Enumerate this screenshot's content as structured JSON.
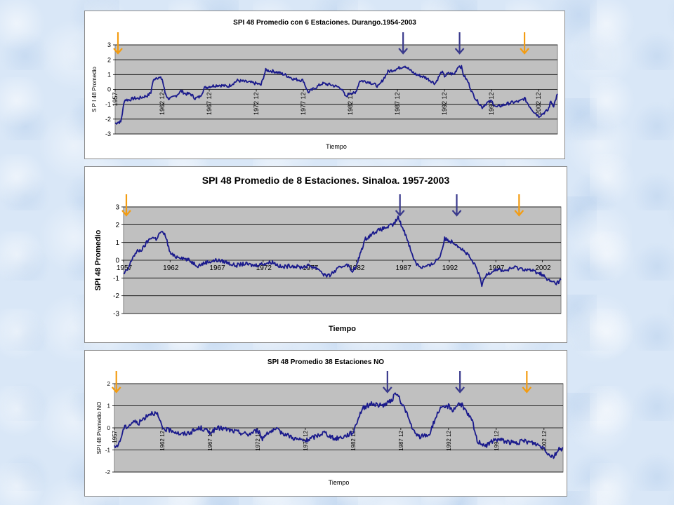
{
  "chart_data": [
    {
      "type": "line",
      "title": "SPI 48  Promedio con 6 Estaciones. Durango.1954-2003",
      "xlabel": "Tiempo",
      "ylabel": "S P I 48  Promedio",
      "ylim": [
        -3,
        3
      ],
      "yticks": [
        "3",
        "2",
        "1",
        "0",
        "-1",
        "-2",
        "-3"
      ],
      "xlim": [
        1957,
        2004
      ],
      "xtick_labels": [
        "1957",
        "1962 12",
        "1967 12",
        "1972 12",
        "1977 12",
        "1982 12",
        "1987 12",
        "1992 12",
        "1997 12",
        "2002 12"
      ],
      "grid": true,
      "series": [
        {
          "color": "#1a1a8c",
          "x": [
            1957.0,
            1957.3,
            1957.6,
            1958.0,
            1958.5,
            1959.0,
            1959.5,
            1960.0,
            1960.5,
            1960.8,
            1961.0,
            1961.3,
            1961.6,
            1962.0,
            1962.3,
            1962.6,
            1963.0,
            1963.5,
            1964.0,
            1964.5,
            1965.0,
            1965.5,
            1966.0,
            1966.5,
            1967.0,
            1968.0,
            1969.0,
            1970.0,
            1971.0,
            1972.0,
            1972.5,
            1973.0,
            1974.0,
            1975.0,
            1976.0,
            1977.0,
            1977.5,
            1978.0,
            1979.0,
            1980.0,
            1981.0,
            1981.5,
            1982.0,
            1982.5,
            1983.0,
            1984.0,
            1985.0,
            1986.0,
            1987.0,
            1987.8,
            1988.5,
            1989.0,
            1990.0,
            1991.0,
            1991.7,
            1992.0,
            1992.5,
            1993.0,
            1993.5,
            1993.8,
            1994.0,
            1994.5,
            1995.0,
            1995.5,
            1996.0,
            1996.5,
            1997.0,
            1997.5,
            1998.0,
            1999.0,
            2000.0,
            2000.5,
            2001.0,
            2001.5,
            2002.0,
            2002.5,
            2003.0,
            2003.3,
            2003.6,
            2004.0
          ],
          "y": [
            -2.3,
            -2.2,
            -2.2,
            -0.7,
            -0.7,
            -0.6,
            -0.6,
            -0.5,
            -0.4,
            -0.2,
            0.5,
            0.8,
            0.8,
            0.7,
            -0.2,
            -0.6,
            -0.6,
            -0.4,
            -0.1,
            -0.3,
            -0.3,
            -0.6,
            -0.5,
            0.1,
            0.2,
            0.3,
            0.2,
            0.6,
            0.5,
            0.4,
            0.3,
            1.3,
            1.2,
            1.0,
            0.7,
            0.6,
            -0.2,
            0.0,
            0.4,
            0.3,
            0.1,
            -0.5,
            -0.2,
            -0.3,
            0.6,
            0.5,
            0.2,
            1.2,
            1.4,
            1.6,
            1.2,
            1.0,
            0.8,
            0.4,
            1.2,
            0.9,
            1.1,
            1.0,
            1.6,
            1.5,
            1.0,
            0.5,
            -0.3,
            -0.8,
            -1.2,
            -0.9,
            -0.8,
            -1.2,
            -1.1,
            -0.9,
            -0.8,
            -0.6,
            -1.1,
            -1.5,
            -1.8,
            -1.6,
            -1.4,
            -0.8,
            -1.1,
            -0.3
          ]
        }
      ],
      "arrows": [
        {
          "x": 1957.3,
          "color": "#f39c12"
        },
        {
          "x": 1987.6,
          "color": "#3a3a8c"
        },
        {
          "x": 1993.6,
          "color": "#3a3a8c"
        },
        {
          "x": 2000.5,
          "color": "#f39c12"
        }
      ]
    },
    {
      "type": "line",
      "title": "SPI 48  Promedio de 8 Estaciones. Sinaloa. 1957-2003",
      "xlabel": "Tiempo",
      "ylabel": "SPI 48 Promedio",
      "ylim": [
        -3,
        3
      ],
      "yticks": [
        "3",
        "2",
        "1",
        "0",
        "-1",
        "-2",
        "-3"
      ],
      "xlim": [
        1957,
        2004
      ],
      "xtick_labels": [
        "1957",
        "1962",
        "1967",
        "1972",
        "1977",
        "1982",
        "1987",
        "1992",
        "1997",
        "2002"
      ],
      "grid": true,
      "series": [
        {
          "color": "#1a1a8c",
          "x": [
            1957.0,
            1957.5,
            1958.0,
            1958.5,
            1959.0,
            1959.5,
            1960.0,
            1960.5,
            1961.0,
            1961.5,
            1962.0,
            1962.5,
            1963.0,
            1964.0,
            1965.0,
            1966.0,
            1967.0,
            1968.0,
            1969.0,
            1970.0,
            1971.0,
            1972.0,
            1973.0,
            1974.0,
            1975.0,
            1976.0,
            1977.0,
            1978.0,
            1978.5,
            1979.0,
            1980.0,
            1981.0,
            1981.5,
            1982.0,
            1982.5,
            1983.0,
            1984.0,
            1985.0,
            1986.0,
            1986.5,
            1987.0,
            1987.5,
            1988.0,
            1988.5,
            1989.0,
            1990.0,
            1991.0,
            1991.5,
            1992.0,
            1992.5,
            1993.0,
            1994.0,
            1995.0,
            1995.5,
            1996.0,
            1997.0,
            1998.0,
            1999.0,
            2000.0,
            2001.0,
            2002.0,
            2002.5,
            2003.0,
            2003.5,
            2004.0
          ],
          "y": [
            -0.8,
            -0.5,
            0.2,
            0.5,
            0.6,
            1.0,
            1.3,
            1.2,
            1.6,
            1.4,
            0.4,
            0.2,
            0.2,
            0.0,
            -0.3,
            -0.1,
            0.0,
            -0.1,
            -0.3,
            -0.2,
            -0.3,
            -0.2,
            -0.1,
            -0.4,
            -0.3,
            -0.4,
            -0.3,
            -0.5,
            -0.8,
            -0.9,
            -0.5,
            -0.2,
            -0.6,
            -0.4,
            0.5,
            1.2,
            1.6,
            1.8,
            2.0,
            2.4,
            1.8,
            1.2,
            0.3,
            -0.2,
            -0.4,
            -0.3,
            0.2,
            1.2,
            1.1,
            1.0,
            0.8,
            0.3,
            -0.5,
            -1.4,
            -0.8,
            -0.5,
            -0.6,
            -0.4,
            -0.5,
            -0.6,
            -0.8,
            -1.1,
            -1.2,
            -1.3,
            -1.1
          ]
        }
      ],
      "arrows": [
        {
          "x": 1957.3,
          "color": "#f39c12"
        },
        {
          "x": 1986.7,
          "color": "#3a3a8c"
        },
        {
          "x": 1992.8,
          "color": "#3a3a8c"
        },
        {
          "x": 1999.5,
          "color": "#f39c12"
        }
      ]
    },
    {
      "type": "line",
      "title": "SPI 48 Promedio 38 Estaciones NO",
      "xlabel": "Tiempo",
      "ylabel": "SPI 48 Promedio NO",
      "ylim": [
        -2,
        2
      ],
      "yticks": [
        "2",
        "1",
        "0",
        "-1",
        "-2"
      ],
      "xlim": [
        1957,
        2004
      ],
      "xtick_labels": [
        "1957",
        "1962 12",
        "1967 12",
        "1972 12",
        "1977 12",
        "1982 12",
        "1987 12",
        "1992 12",
        "1997 12",
        "2002 12"
      ],
      "grid": true,
      "series": [
        {
          "color": "#1a1a8c",
          "x": [
            1957.0,
            1957.5,
            1958.0,
            1958.5,
            1959.0,
            1959.5,
            1960.0,
            1960.5,
            1961.0,
            1961.5,
            1962.0,
            1962.5,
            1963.0,
            1964.0,
            1965.0,
            1966.0,
            1967.0,
            1968.0,
            1969.0,
            1970.0,
            1971.0,
            1972.0,
            1972.5,
            1973.0,
            1974.0,
            1975.0,
            1976.0,
            1977.0,
            1978.0,
            1979.0,
            1980.0,
            1981.0,
            1982.0,
            1982.5,
            1983.0,
            1984.0,
            1985.0,
            1986.0,
            1986.5,
            1987.0,
            1987.5,
            1988.0,
            1988.5,
            1989.0,
            1990.0,
            1990.5,
            1991.0,
            1992.0,
            1992.5,
            1993.0,
            1993.5,
            1994.0,
            1994.5,
            1995.0,
            1996.0,
            1997.0,
            1998.0,
            1999.0,
            2000.0,
            2001.0,
            2002.0,
            2002.5,
            2003.0,
            2003.5,
            2004.0
          ],
          "y": [
            -0.9,
            -0.7,
            0.0,
            0.1,
            0.3,
            0.2,
            0.4,
            0.6,
            0.7,
            0.6,
            0.0,
            -0.1,
            -0.1,
            -0.3,
            -0.2,
            0.0,
            -0.2,
            0.0,
            -0.1,
            -0.2,
            -0.3,
            -0.1,
            -0.5,
            -0.2,
            -0.1,
            -0.3,
            -0.5,
            -0.6,
            -0.4,
            -0.2,
            -0.5,
            -0.4,
            -0.2,
            0.4,
            0.9,
            1.1,
            1.0,
            1.2,
            1.6,
            1.2,
            0.8,
            0.2,
            -0.3,
            -0.4,
            -0.3,
            0.3,
            0.8,
            1.0,
            0.8,
            1.1,
            1.0,
            0.6,
            0.3,
            -0.6,
            -0.8,
            -0.5,
            -0.6,
            -0.7,
            -0.6,
            -0.7,
            -0.9,
            -1.2,
            -1.3,
            -1.0,
            -0.9
          ]
        }
      ],
      "arrows": [
        {
          "x": 1957.2,
          "color": "#f39c12"
        },
        {
          "x": 1985.6,
          "color": "#3a3a8c"
        },
        {
          "x": 1993.2,
          "color": "#3a3a8c"
        },
        {
          "x": 2000.2,
          "color": "#f39c12"
        }
      ]
    }
  ]
}
